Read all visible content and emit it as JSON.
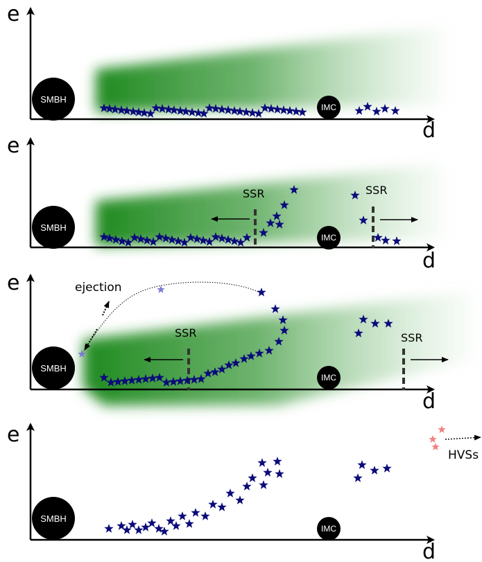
{
  "panels": [
    {
      "e_axis_label": "e",
      "d_axis_label": "d",
      "smbh_label": "SMBH",
      "imc_label": "IMC",
      "ssr_labels": [],
      "note_label": "",
      "hvs_label": ""
    },
    {
      "e_axis_label": "e",
      "d_axis_label": "d",
      "smbh_label": "SMBH",
      "imc_label": "IMC",
      "ssr_labels": [
        "SSR",
        "SSR"
      ],
      "note_label": "",
      "hvs_label": ""
    },
    {
      "e_axis_label": "e",
      "d_axis_label": "d",
      "smbh_label": "SMBH",
      "imc_label": "IMC",
      "ssr_labels": [
        "SSR",
        "SSR"
      ],
      "note_label": "ejection",
      "hvs_label": ""
    },
    {
      "e_axis_label": "e",
      "d_axis_label": "d",
      "smbh_label": "SMBH",
      "imc_label": "IMC",
      "ssr_labels": [],
      "note_label": "",
      "hvs_label": "HVSs"
    }
  ],
  "colors": {
    "star": "#0b0b7a",
    "ejected_star": "#7b7bd0",
    "hvs_star": "#f08080",
    "disk_green": "#2e8b2e",
    "black_hole": "#000000"
  },
  "icons": {
    "smbh": "black-circle",
    "imc": "black-circle",
    "star": "five-point-star"
  }
}
